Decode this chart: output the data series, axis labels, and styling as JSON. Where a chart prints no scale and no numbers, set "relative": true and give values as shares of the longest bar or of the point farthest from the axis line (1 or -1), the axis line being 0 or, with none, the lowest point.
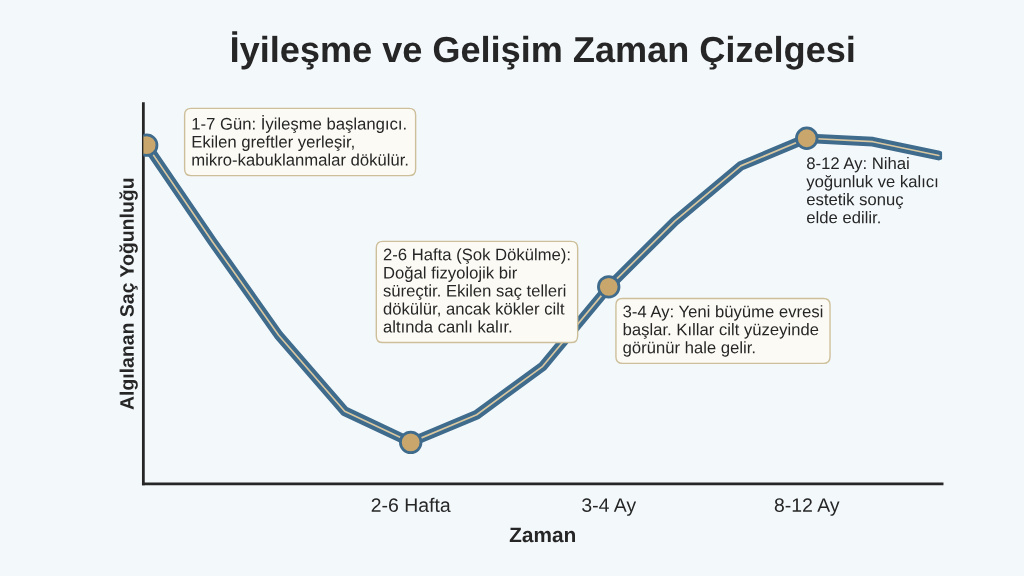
{
  "chart_data": {
    "type": "line",
    "title": "İyileşme ve Gelişim Zaman Çizelgesi",
    "xlabel": "Zaman",
    "ylabel": "Algılanan Saç Yoğunluğu",
    "relative": true,
    "categories": [
      null,
      null,
      null,
      null,
      "2-6 Hafta",
      null,
      null,
      "3-4 Ay",
      null,
      null,
      "8-12 Ay",
      null,
      null
    ],
    "series": [
      {
        "color": "#3f6b8c",
        "values": [
          0.98,
          0.7,
          0.43,
          0.21,
          0.12,
          0.2,
          0.34,
          0.57,
          0.76,
          0.92,
          1.0,
          0.99,
          0.95
        ]
      },
      {
        "type": "scatter",
        "marker": "circle",
        "color": "#c9a66b",
        "values": [
          0.98,
          null,
          null,
          null,
          0.12,
          null,
          null,
          0.57,
          null,
          null,
          1.0,
          null,
          null
        ]
      }
    ],
    "annotations": [
      "1-7 Gün: İyileşme başlangıcı.\nEkilen greftler yerleşir,\nmikro-kabuklanmalar dökülür.",
      "2-6 Hafta (Şok Dökülme):\nDoğal fizyolojik bir\nsüreçtir. Ekilen saç telleri\ndökülür, ancak kökler cilt\naltında canlı kalır.",
      "3-4 Ay: Yeni büyüme evresi\nbaşlar. Kıllar cilt yüzeyinde\ngörünür hale gelir.",
      "8-12 Ay: Nihai\nyoğunluk ve kalıcı\nestetik sonuç\nelde edilir."
    ]
  }
}
